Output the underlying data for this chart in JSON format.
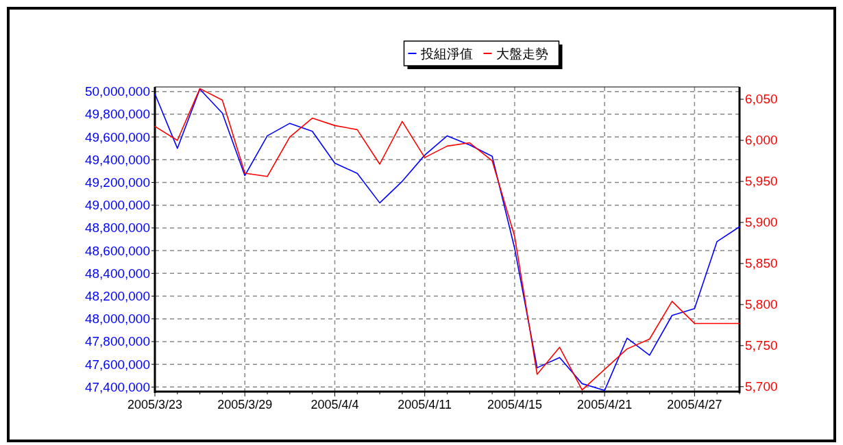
{
  "chart_data": {
    "type": "line",
    "categories": [
      "2005/3/23",
      null,
      null,
      null,
      "2005/3/29",
      null,
      null,
      null,
      "2005/4/4",
      null,
      null,
      null,
      "2005/4/11",
      null,
      null,
      null,
      "2005/4/15",
      null,
      null,
      null,
      "2005/4/21",
      null,
      null,
      null,
      "2005/4/27",
      null,
      null
    ],
    "series": [
      {
        "name": "投組淨值",
        "color": "#0000ff",
        "axis": "y",
        "values": [
          49980000,
          49500000,
          50020000,
          49810000,
          49260000,
          49610000,
          49720000,
          49650000,
          49370000,
          49280000,
          49020000,
          49210000,
          49440000,
          49610000,
          49530000,
          49430000,
          48620000,
          47570000,
          47660000,
          47430000,
          47370000,
          47830000,
          47680000,
          48030000,
          48090000,
          48680000,
          48810000
        ]
      },
      {
        "name": "大盤走勢",
        "color": "#ff0000",
        "axis": "y2",
        "values": [
          6017,
          6000,
          6063,
          6049,
          5960,
          5956,
          6004,
          6027,
          6018,
          6013,
          5971,
          6023,
          5979,
          5993,
          5997,
          5975,
          5883,
          5715,
          5748,
          5696,
          5721,
          5746,
          5758,
          5804,
          5777,
          5777,
          5777
        ]
      }
    ],
    "ylim": [
      47360000,
      50040000
    ],
    "yticks": [
      {
        "value": 47400000,
        "label": "47,400,000"
      },
      {
        "value": 47600000,
        "label": "47,600,000"
      },
      {
        "value": 47800000,
        "label": "47,800,000"
      },
      {
        "value": 48000000,
        "label": "48,000,000"
      },
      {
        "value": 48200000,
        "label": "48,200,000"
      },
      {
        "value": 48400000,
        "label": "48,400,000"
      },
      {
        "value": 48600000,
        "label": "48,600,000"
      },
      {
        "value": 48800000,
        "label": "48,800,000"
      },
      {
        "value": 49000000,
        "label": "49,000,000"
      },
      {
        "value": 49200000,
        "label": "49,200,000"
      },
      {
        "value": 49400000,
        "label": "49,400,000"
      },
      {
        "value": 49600000,
        "label": "49,600,000"
      },
      {
        "value": 49800000,
        "label": "49,800,000"
      },
      {
        "value": 50000000,
        "label": "50,000,000"
      }
    ],
    "y2lim": [
      5694,
      6065
    ],
    "y2ticks": [
      {
        "value": 5700,
        "label": "5,700"
      },
      {
        "value": 5750,
        "label": "5,750"
      },
      {
        "value": 5800,
        "label": "5,800"
      },
      {
        "value": 5850,
        "label": "5,850"
      },
      {
        "value": 5900,
        "label": "5,900"
      },
      {
        "value": 5950,
        "label": "5,950"
      },
      {
        "value": 6000,
        "label": "6,000"
      },
      {
        "value": 6050,
        "label": "6,050"
      }
    ],
    "grid": true,
    "legend": "top",
    "marker": "none",
    "line_style": "solid"
  }
}
